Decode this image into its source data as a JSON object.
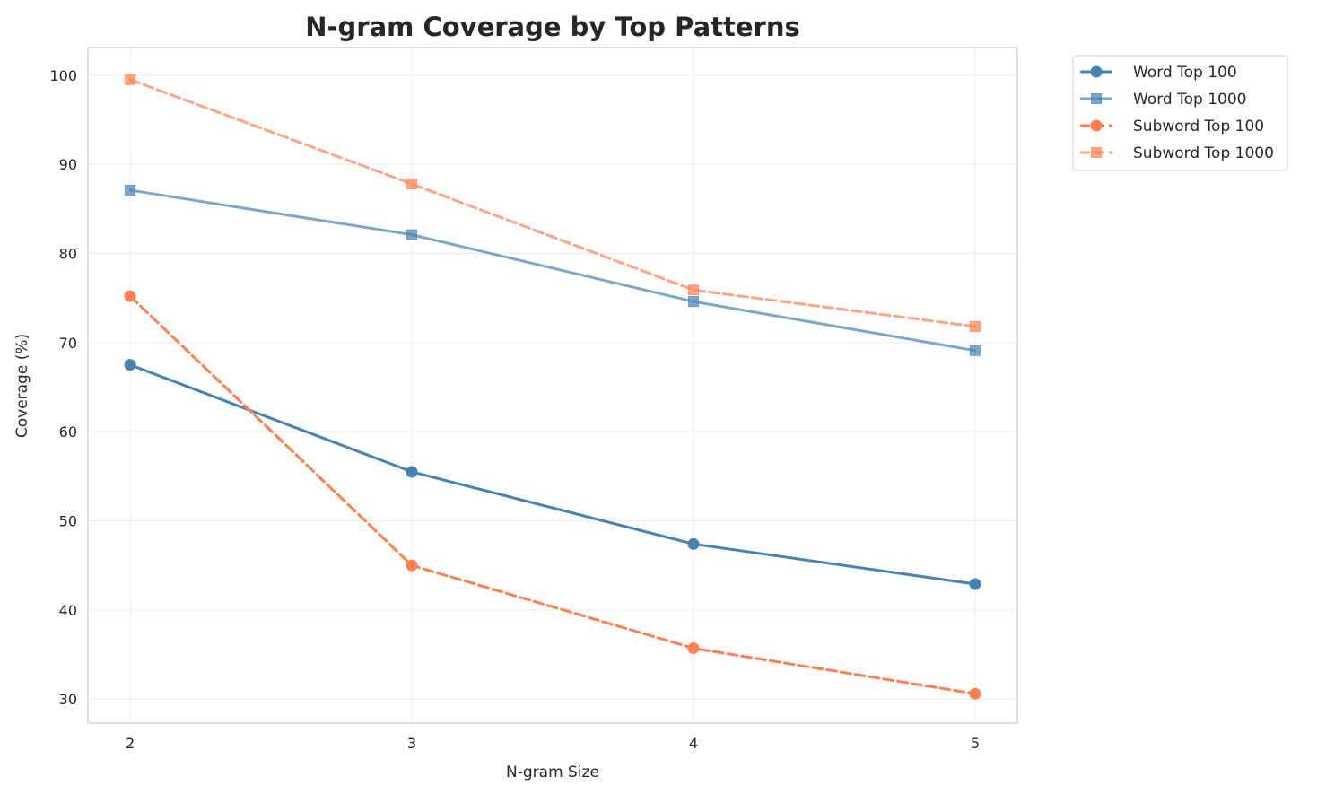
{
  "chart_data": {
    "type": "line",
    "title": "N-gram Coverage by Top Patterns",
    "xlabel": "N-gram Size",
    "ylabel": "Coverage (%)",
    "x": [
      2,
      3,
      4,
      5
    ],
    "xticks": [
      "2",
      "3",
      "4",
      "5"
    ],
    "yticks": [
      "30",
      "40",
      "50",
      "60",
      "70",
      "80",
      "90",
      "100"
    ],
    "xlim": [
      1.85,
      5.15
    ],
    "ylim": [
      27.3,
      103.1
    ],
    "grid": true,
    "legend_position": "outside-top-right",
    "series": [
      {
        "name": "Word Top 100",
        "values": [
          67.5,
          55.5,
          47.4,
          42.9
        ],
        "color": "#4682b4",
        "dash": "solid",
        "marker": "circle",
        "alpha": 1
      },
      {
        "name": "Word Top 1000",
        "values": [
          87.1,
          82.1,
          74.6,
          69.1
        ],
        "color": "#4682b4",
        "dash": "solid",
        "marker": "square",
        "alpha": 0.7
      },
      {
        "name": "Subword Top 100",
        "values": [
          75.2,
          45.0,
          35.7,
          30.6
        ],
        "color": "#ff7f50",
        "dash": "dashed",
        "marker": "circle",
        "alpha": 1
      },
      {
        "name": "Subword Top 1000",
        "values": [
          99.5,
          87.8,
          75.9,
          71.8
        ],
        "color": "#ff7f50",
        "dash": "dashed",
        "marker": "square",
        "alpha": 0.7
      }
    ]
  }
}
